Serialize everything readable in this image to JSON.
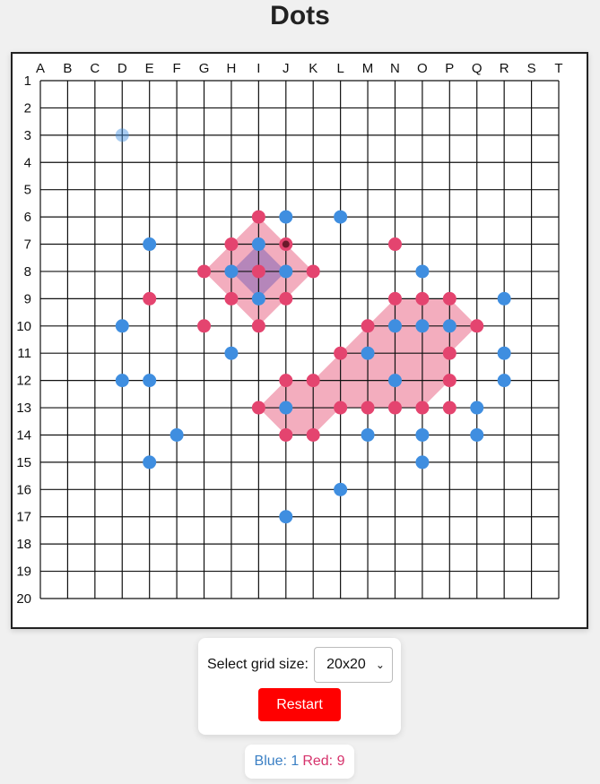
{
  "title": "Dots",
  "grid": {
    "size": 20,
    "columns": [
      "A",
      "B",
      "C",
      "D",
      "E",
      "F",
      "G",
      "H",
      "I",
      "J",
      "K",
      "L",
      "M",
      "N",
      "O",
      "P",
      "Q",
      "R",
      "S",
      "T"
    ],
    "rows": [
      "1",
      "2",
      "3",
      "4",
      "5",
      "6",
      "7",
      "8",
      "9",
      "10",
      "11",
      "12",
      "13",
      "14",
      "15",
      "16",
      "17",
      "18",
      "19",
      "20"
    ]
  },
  "colors": {
    "blue": "#3f8ee0",
    "red": "#e4446f",
    "red_fill": "#ee8aa3",
    "overlap_fill": "#a07ab8",
    "last_move_center": "#6b1a2a",
    "restart": "#ff0000"
  },
  "dots": [
    {
      "col": "I",
      "row": 6,
      "color": "red"
    },
    {
      "col": "J",
      "row": 6,
      "color": "blue"
    },
    {
      "col": "L",
      "row": 6,
      "color": "blue"
    },
    {
      "col": "E",
      "row": 7,
      "color": "blue"
    },
    {
      "col": "H",
      "row": 7,
      "color": "red"
    },
    {
      "col": "I",
      "row": 7,
      "color": "blue"
    },
    {
      "col": "J",
      "row": 7,
      "color": "red",
      "last": true
    },
    {
      "col": "N",
      "row": 7,
      "color": "red"
    },
    {
      "col": "G",
      "row": 8,
      "color": "red"
    },
    {
      "col": "H",
      "row": 8,
      "color": "blue"
    },
    {
      "col": "I",
      "row": 8,
      "color": "red"
    },
    {
      "col": "J",
      "row": 8,
      "color": "blue"
    },
    {
      "col": "K",
      "row": 8,
      "color": "red"
    },
    {
      "col": "O",
      "row": 8,
      "color": "blue"
    },
    {
      "col": "E",
      "row": 9,
      "color": "red"
    },
    {
      "col": "H",
      "row": 9,
      "color": "red"
    },
    {
      "col": "I",
      "row": 9,
      "color": "blue"
    },
    {
      "col": "J",
      "row": 9,
      "color": "red"
    },
    {
      "col": "N",
      "row": 9,
      "color": "red"
    },
    {
      "col": "O",
      "row": 9,
      "color": "red"
    },
    {
      "col": "P",
      "row": 9,
      "color": "red"
    },
    {
      "col": "R",
      "row": 9,
      "color": "blue"
    },
    {
      "col": "D",
      "row": 10,
      "color": "blue"
    },
    {
      "col": "G",
      "row": 10,
      "color": "red"
    },
    {
      "col": "I",
      "row": 10,
      "color": "red"
    },
    {
      "col": "M",
      "row": 10,
      "color": "red"
    },
    {
      "col": "N",
      "row": 10,
      "color": "blue"
    },
    {
      "col": "O",
      "row": 10,
      "color": "blue"
    },
    {
      "col": "P",
      "row": 10,
      "color": "blue"
    },
    {
      "col": "Q",
      "row": 10,
      "color": "red"
    },
    {
      "col": "H",
      "row": 11,
      "color": "blue"
    },
    {
      "col": "L",
      "row": 11,
      "color": "red"
    },
    {
      "col": "M",
      "row": 11,
      "color": "blue"
    },
    {
      "col": "P",
      "row": 11,
      "color": "red"
    },
    {
      "col": "R",
      "row": 11,
      "color": "blue"
    },
    {
      "col": "D",
      "row": 12,
      "color": "blue"
    },
    {
      "col": "E",
      "row": 12,
      "color": "blue"
    },
    {
      "col": "J",
      "row": 12,
      "color": "red"
    },
    {
      "col": "K",
      "row": 12,
      "color": "red"
    },
    {
      "col": "N",
      "row": 12,
      "color": "blue"
    },
    {
      "col": "P",
      "row": 12,
      "color": "red"
    },
    {
      "col": "R",
      "row": 12,
      "color": "blue"
    },
    {
      "col": "I",
      "row": 13,
      "color": "red"
    },
    {
      "col": "J",
      "row": 13,
      "color": "blue"
    },
    {
      "col": "L",
      "row": 13,
      "color": "red"
    },
    {
      "col": "M",
      "row": 13,
      "color": "red"
    },
    {
      "col": "N",
      "row": 13,
      "color": "red"
    },
    {
      "col": "O",
      "row": 13,
      "color": "red"
    },
    {
      "col": "P",
      "row": 13,
      "color": "red"
    },
    {
      "col": "Q",
      "row": 13,
      "color": "blue"
    },
    {
      "col": "F",
      "row": 14,
      "color": "blue"
    },
    {
      "col": "J",
      "row": 14,
      "color": "red"
    },
    {
      "col": "K",
      "row": 14,
      "color": "red"
    },
    {
      "col": "M",
      "row": 14,
      "color": "blue"
    },
    {
      "col": "O",
      "row": 14,
      "color": "blue"
    },
    {
      "col": "Q",
      "row": 14,
      "color": "blue"
    },
    {
      "col": "E",
      "row": 15,
      "color": "blue"
    },
    {
      "col": "O",
      "row": 15,
      "color": "blue"
    },
    {
      "col": "L",
      "row": 16,
      "color": "blue"
    },
    {
      "col": "J",
      "row": 17,
      "color": "blue"
    }
  ],
  "hover_dot": {
    "col": "D",
    "row": 3,
    "color": "blue"
  },
  "regions": [
    {
      "owner": "red",
      "points": [
        [
          "I",
          6
        ],
        [
          "J",
          7
        ],
        [
          "K",
          8
        ],
        [
          "J",
          9
        ],
        [
          "I",
          10
        ],
        [
          "H",
          9
        ],
        [
          "G",
          8
        ],
        [
          "H",
          7
        ]
      ]
    },
    {
      "owner": "overlap",
      "points": [
        [
          "I",
          7
        ],
        [
          "J",
          8
        ],
        [
          "I",
          9
        ],
        [
          "H",
          8
        ]
      ]
    },
    {
      "owner": "red",
      "points": [
        [
          "N",
          9
        ],
        [
          "O",
          9
        ],
        [
          "P",
          9
        ],
        [
          "Q",
          10
        ],
        [
          "P",
          11
        ],
        [
          "P",
          12
        ],
        [
          "O",
          13
        ],
        [
          "N",
          13
        ],
        [
          "M",
          13
        ],
        [
          "L",
          13
        ],
        [
          "K",
          14
        ],
        [
          "J",
          14
        ],
        [
          "I",
          13
        ],
        [
          "J",
          12
        ],
        [
          "K",
          12
        ],
        [
          "L",
          11
        ],
        [
          "M",
          10
        ]
      ]
    }
  ],
  "controls": {
    "grid_size_label": "Select grid size:",
    "grid_size_value": "20x20",
    "restart_label": "Restart"
  },
  "score": {
    "blue_label": "Blue: 1",
    "red_label": "Red: 9"
  }
}
